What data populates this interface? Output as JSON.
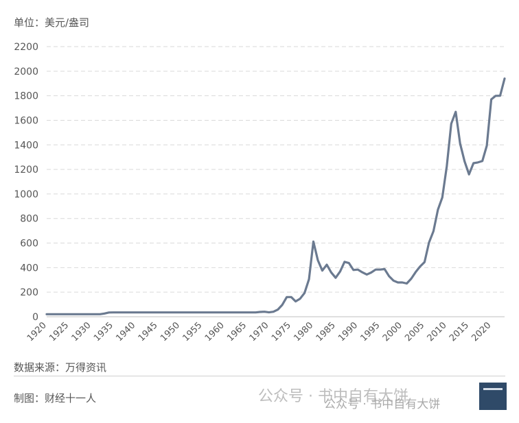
{
  "unit_label": "单位：美元/盎司",
  "source_label": "数据来源：万得资讯",
  "maker_label": "制图：财经十一人",
  "watermark_1": "公众号 · 书中自有大饼",
  "watermark_2": "公众号 · 书中自有大饼",
  "colors": {
    "line": "#6b7a90",
    "grid": "#d9d9d9",
    "text": "#555555"
  },
  "chart_data": {
    "type": "line",
    "title": "",
    "xlabel": "",
    "ylabel": "",
    "xlim": [
      1920,
      2023
    ],
    "ylim": [
      0,
      2200
    ],
    "yticks": [
      0,
      200,
      400,
      600,
      800,
      1000,
      1200,
      1400,
      1600,
      1800,
      2000,
      2200
    ],
    "xticks": [
      "1920",
      "1925",
      "1930",
      "1935",
      "1940",
      "1945",
      "1950",
      "1955",
      "1960",
      "1965",
      "1970",
      "1975",
      "1980",
      "1985",
      "1990",
      "1995",
      "2000",
      "2005",
      "2010",
      "2015",
      "2020"
    ],
    "grid": true,
    "legend": "none",
    "x": [
      1920,
      1921,
      1922,
      1923,
      1924,
      1925,
      1926,
      1927,
      1928,
      1929,
      1930,
      1931,
      1932,
      1933,
      1934,
      1935,
      1936,
      1937,
      1938,
      1939,
      1940,
      1941,
      1942,
      1943,
      1944,
      1945,
      1946,
      1947,
      1948,
      1949,
      1950,
      1951,
      1952,
      1953,
      1954,
      1955,
      1956,
      1957,
      1958,
      1959,
      1960,
      1961,
      1962,
      1963,
      1964,
      1965,
      1966,
      1967,
      1968,
      1969,
      1970,
      1971,
      1972,
      1973,
      1974,
      1975,
      1976,
      1977,
      1978,
      1979,
      1980,
      1981,
      1982,
      1983,
      1984,
      1985,
      1986,
      1987,
      1988,
      1989,
      1990,
      1991,
      1992,
      1993,
      1994,
      1995,
      1996,
      1997,
      1998,
      1999,
      2000,
      2001,
      2002,
      2003,
      2004,
      2005,
      2006,
      2007,
      2008,
      2009,
      2010,
      2011,
      2012,
      2013,
      2014,
      2015,
      2016,
      2017,
      2018,
      2019,
      2020,
      2021,
      2022,
      2023
    ],
    "series": [
      {
        "values": [
          20.7,
          20.7,
          20.7,
          20.7,
          20.7,
          20.7,
          20.7,
          20.7,
          20.7,
          20.7,
          20.7,
          20.7,
          20.7,
          26,
          34.7,
          35,
          35,
          35,
          35,
          35,
          35,
          35,
          35,
          35,
          35,
          35,
          35,
          35,
          35,
          35,
          35,
          35,
          35,
          35,
          35,
          35,
          35,
          35,
          35,
          35,
          35,
          35,
          35,
          35,
          35,
          35,
          35,
          35,
          39,
          41,
          36,
          41,
          58,
          97,
          160,
          160,
          125,
          147,
          193,
          306,
          612,
          460,
          376,
          424,
          361,
          317,
          368,
          447,
          437,
          381,
          384,
          362,
          344,
          360,
          384,
          384,
          388,
          331,
          294,
          279,
          279,
          271,
          310,
          364,
          410,
          445,
          604,
          697,
          872,
          972,
          1225,
          1572,
          1669,
          1411,
          1266,
          1160,
          1251,
          1257,
          1268,
          1393,
          1770,
          1799,
          1800,
          1940
        ]
      }
    ]
  }
}
